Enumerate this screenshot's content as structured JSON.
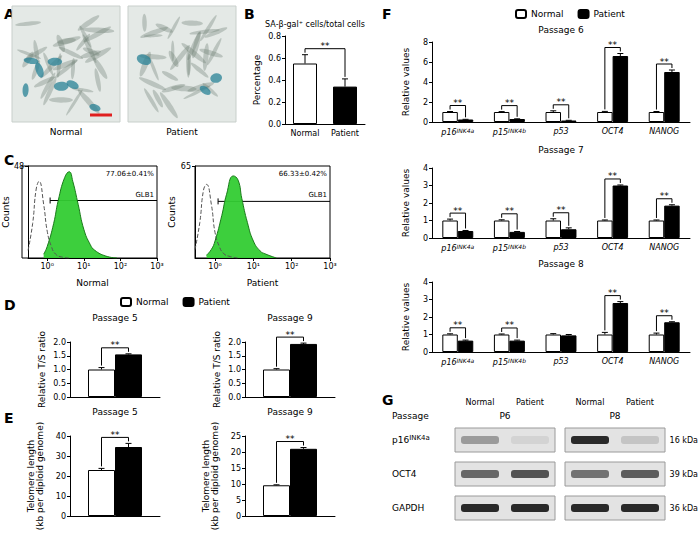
{
  "chart_data": [
    {
      "panel": "A",
      "type": "image",
      "labels": [
        "Normal",
        "Patient"
      ]
    },
    {
      "panel": "B",
      "type": "bar",
      "title": "SA-β-gal⁺ cells/total cells",
      "y_label": "Percentage",
      "categories": [
        "Normal",
        "Patient"
      ],
      "values": [
        0.55,
        0.34
      ],
      "errors": [
        0.08,
        0.07
      ],
      "colors": [
        "#ffffff",
        "#000000"
      ],
      "ylim": [
        0,
        0.8
      ],
      "yticks": [
        {
          "value": 0,
          "label": "0.0"
        },
        0.2,
        0.4,
        0.6,
        0.8
      ],
      "significance": [
        "**"
      ]
    },
    {
      "panel": "C",
      "type": "line",
      "x_label": "Normal",
      "y_label": "Counts",
      "annotation": "77.06±0.41%",
      "log": "x",
      "xlim": [
        0.3,
        1000
      ],
      "xticks": [
        {
          "value": 1,
          "label": "10⁰"
        },
        {
          "value": 10,
          "label": "10¹"
        },
        {
          "value": 100,
          "label": "10²"
        },
        {
          "value": 1000,
          "label": "10³"
        }
      ],
      "ylim": [
        0,
        48
      ],
      "yticks": [
        48
      ],
      "gate": {
        "label": "GLB1",
        "x": [
          1.2,
          1000
        ],
        "y": 30
      },
      "series": [
        {
          "type": "line",
          "line_style": "dashed",
          "color": "#555555",
          "x": [
            0.3,
            0.4,
            0.5,
            0.6,
            0.8,
            1,
            1.3,
            1.7,
            2.5,
            4
          ],
          "values": [
            4,
            18,
            36,
            40,
            28,
            14,
            6,
            2,
            0.5,
            0
          ]
        },
        {
          "type": "area",
          "line_style": "solid",
          "color": "#33cc33",
          "x": [
            0.8,
            1,
            1.5,
            2,
            3,
            4,
            5,
            7,
            10,
            15,
            20,
            40,
            80
          ],
          "values": [
            2,
            6,
            18,
            30,
            42,
            45,
            40,
            28,
            15,
            7,
            4,
            1,
            0
          ]
        }
      ]
    },
    {
      "type": "line",
      "x_label": "Patient",
      "y_label": "Counts",
      "annotation": "66.33±0.42%",
      "log": "x",
      "xlim": [
        0.3,
        1000
      ],
      "xticks": [
        {
          "value": 1,
          "label": "10⁰"
        },
        {
          "value": 10,
          "label": "10¹"
        },
        {
          "value": 100,
          "label": "10²"
        },
        {
          "value": 1000,
          "label": "10³"
        }
      ],
      "ylim": [
        0,
        65
      ],
      "yticks": [
        65
      ],
      "gate": {
        "label": "GLB1",
        "x": [
          1.2,
          1000
        ],
        "y": 40
      },
      "series": [
        {
          "type": "line",
          "line_style": "dashed",
          "color": "#555555",
          "x": [
            0.3,
            0.4,
            0.5,
            0.6,
            0.8,
            1,
            1.3,
            1.7,
            2.5,
            4
          ],
          "values": [
            6,
            25,
            48,
            52,
            38,
            18,
            8,
            3,
            1,
            0
          ]
        },
        {
          "type": "area",
          "line_style": "solid",
          "color": "#33cc33",
          "x": [
            0.6,
            0.8,
            1,
            1.5,
            2,
            3,
            4,
            5,
            7,
            10,
            15,
            20,
            40
          ],
          "values": [
            2,
            6,
            12,
            30,
            45,
            58,
            55,
            42,
            25,
            12,
            5,
            3,
            0
          ]
        }
      ]
    },
    {
      "panel": "D",
      "type": "bar",
      "title": "Passage 5",
      "y_label": "Relative T/S ratio",
      "categories": [
        null
      ],
      "legend": "top",
      "series": [
        {
          "name": "Normal",
          "color": "#ffffff",
          "values": [
            1.0
          ],
          "errors": [
            0.07
          ]
        },
        {
          "name": "Patient",
          "color": "#000000",
          "values": [
            1.55
          ],
          "errors": [
            0.02
          ]
        }
      ],
      "ylim": [
        0,
        2
      ],
      "yticks": [
        {
          "value": 0,
          "label": "0.0"
        },
        0.5,
        {
          "value": 1,
          "label": "1.0"
        },
        1.5,
        {
          "value": 2,
          "label": "2.0"
        }
      ],
      "significance": [
        "**"
      ]
    },
    {
      "type": "bar",
      "title": "Passage 9",
      "y_label": "Relative T/S ratio",
      "categories": [
        null
      ],
      "series": [
        {
          "name": "Normal",
          "color": "#ffffff",
          "values": [
            1.0
          ],
          "errors": [
            0.03
          ]
        },
        {
          "name": "Patient",
          "color": "#000000",
          "values": [
            1.93
          ],
          "errors": [
            0.03
          ]
        }
      ],
      "ylim": [
        0,
        2
      ],
      "yticks": [
        {
          "value": 0,
          "label": "0.0"
        },
        0.5,
        {
          "value": 1,
          "label": "1.0"
        },
        1.5,
        {
          "value": 2,
          "label": "2.0"
        }
      ],
      "significance": [
        "**"
      ]
    },
    {
      "panel": "E",
      "type": "bar",
      "title": "Passage 5",
      "y_label": "Telomere length\n(kb per diploid genome)",
      "categories": [
        null
      ],
      "series": [
        {
          "name": "Normal",
          "color": "#ffffff",
          "values": [
            23
          ],
          "errors": [
            0.8
          ]
        },
        {
          "name": "Patient",
          "color": "#000000",
          "values": [
            34.5
          ],
          "errors": [
            1.8
          ]
        }
      ],
      "ylim": [
        0,
        40
      ],
      "yticks": [
        0,
        10,
        20,
        30,
        40
      ],
      "significance": [
        "**"
      ]
    },
    {
      "type": "bar",
      "title": "Passage 9",
      "y_label": "Telomere length\n(kb per diploid genome)",
      "categories": [
        null
      ],
      "series": [
        {
          "name": "Normal",
          "color": "#ffffff",
          "values": [
            9.6
          ],
          "errors": [
            0.15
          ]
        },
        {
          "name": "Patient",
          "color": "#000000",
          "values": [
            21
          ],
          "errors": [
            0.4
          ]
        }
      ],
      "ylim": [
        0,
        25
      ],
      "yticks": [
        0,
        5,
        10,
        15,
        20,
        25
      ],
      "significance": [
        "**"
      ]
    },
    {
      "panel": "F",
      "type": "bar",
      "title": "Passage 6",
      "y_label": "Relative values",
      "legend": "top",
      "categories": [
        "p16INK4a",
        "p15INK4b",
        "p53",
        "OCT4",
        "NANOG"
      ],
      "series": [
        {
          "name": "Normal",
          "color": "#ffffff",
          "values": [
            1,
            1,
            1,
            1,
            1
          ],
          "errors": [
            0.05,
            0.04,
            0.12,
            0.06,
            0.05
          ]
        },
        {
          "name": "Patient",
          "color": "#000000",
          "values": [
            0.25,
            0.3,
            0.15,
            6.6,
            5.0
          ],
          "errors": [
            0.02,
            0.02,
            0.02,
            0.25,
            0.2
          ]
        }
      ],
      "ylim": [
        0,
        8
      ],
      "yticks": [
        0,
        2,
        4,
        6,
        8
      ],
      "significance": [
        "**",
        "**",
        "**",
        "**",
        "**"
      ]
    },
    {
      "type": "bar",
      "title": "Passage 7",
      "y_label": "Relative values",
      "categories": [
        "p16INK4a",
        "p15INK4b",
        "p53",
        "OCT4",
        "NANOG"
      ],
      "series": [
        {
          "name": "Normal",
          "color": "#ffffff",
          "values": [
            1,
            1,
            1,
            1,
            1
          ],
          "errors": [
            0.08,
            0.04,
            0.1,
            0.03,
            0.03
          ]
        },
        {
          "name": "Patient",
          "color": "#000000",
          "values": [
            0.4,
            0.35,
            0.5,
            3.0,
            1.85
          ],
          "errors": [
            0.03,
            0.02,
            0.08,
            0.03,
            0.05
          ]
        }
      ],
      "ylim": [
        0,
        4
      ],
      "yticks": [
        0,
        1,
        2,
        3,
        4
      ],
      "significance": [
        "**",
        "**",
        "**",
        "**",
        "**"
      ]
    },
    {
      "type": "bar",
      "title": "Passage 8",
      "y_label": "Relative values",
      "categories": [
        "p16INK4a",
        "p15INK4b",
        "p53",
        "OCT4",
        "NANOG"
      ],
      "series": [
        {
          "name": "Normal",
          "color": "#ffffff",
          "values": [
            1,
            1,
            1,
            1,
            1
          ],
          "errors": [
            0.04,
            0.03,
            0.05,
            0.12,
            0.08
          ]
        },
        {
          "name": "Patient",
          "color": "#000000",
          "values": [
            0.65,
            0.65,
            0.95,
            2.8,
            1.7
          ],
          "errors": [
            0.03,
            0.03,
            0.05,
            0.08,
            0.03
          ]
        }
      ],
      "ylim": [
        0,
        4
      ],
      "yticks": [
        0,
        1,
        2,
        3,
        4
      ],
      "significance": [
        "**",
        "**",
        null,
        "**",
        "**"
      ]
    },
    {
      "panel": "G",
      "type": "blot",
      "header": "Passage",
      "groups": [
        {
          "label": "P6",
          "lanes": [
            "Normal",
            "Patient"
          ]
        },
        {
          "label": "P8",
          "lanes": [
            "Normal",
            "Patient"
          ]
        }
      ],
      "rows": [
        {
          "label": "p16INK4a",
          "size": "16 kDa",
          "band_intensity": [
            0.35,
            0.08,
            0.9,
            0.15
          ]
        },
        {
          "label": "OCT4",
          "size": "39 kDa",
          "band_intensity": [
            0.6,
            0.7,
            0.55,
            0.65
          ]
        },
        {
          "label": "GAPDH",
          "size": "36 kDa",
          "band_intensity": [
            0.9,
            0.9,
            0.9,
            0.9
          ]
        }
      ]
    }
  ]
}
